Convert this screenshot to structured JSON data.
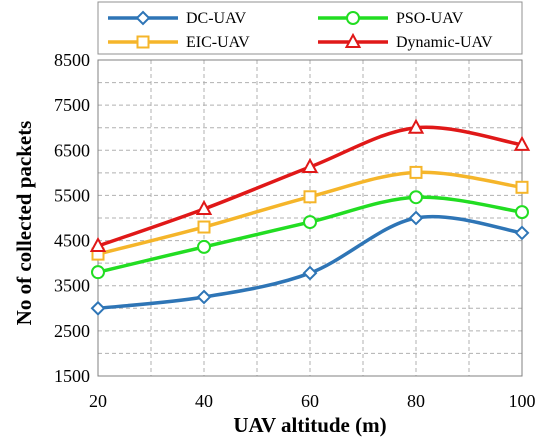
{
  "chart_data": {
    "type": "line",
    "x": [
      20,
      40,
      60,
      80,
      100
    ],
    "xlabel": "UAV altitude (m)",
    "ylabel": "No of collected packets",
    "xlim": [
      20,
      100
    ],
    "ylim": [
      1500,
      8500
    ],
    "xticks": [
      "20",
      "40",
      "60",
      "80",
      "100"
    ],
    "yticks": [
      "1500",
      "2500",
      "3500",
      "4500",
      "5500",
      "6500",
      "7500",
      "8500"
    ],
    "grid": true,
    "legend_position": "top",
    "series": [
      {
        "name": "DC-UAV",
        "values": [
          3000,
          3250,
          3780,
          5000,
          4670
        ],
        "color": "#2e75b6",
        "marker": "diamond"
      },
      {
        "name": "PSO-UAV",
        "values": [
          3800,
          4360,
          4910,
          5460,
          5130
        ],
        "color": "#22dd22",
        "marker": "circle"
      },
      {
        "name": "EIC-UAV",
        "values": [
          4200,
          4800,
          5470,
          6010,
          5680
        ],
        "color": "#f5b52a",
        "marker": "square"
      },
      {
        "name": "Dynamic-UAV",
        "values": [
          4380,
          5200,
          6130,
          7000,
          6620
        ],
        "color": "#e01818",
        "marker": "triangle"
      }
    ]
  }
}
